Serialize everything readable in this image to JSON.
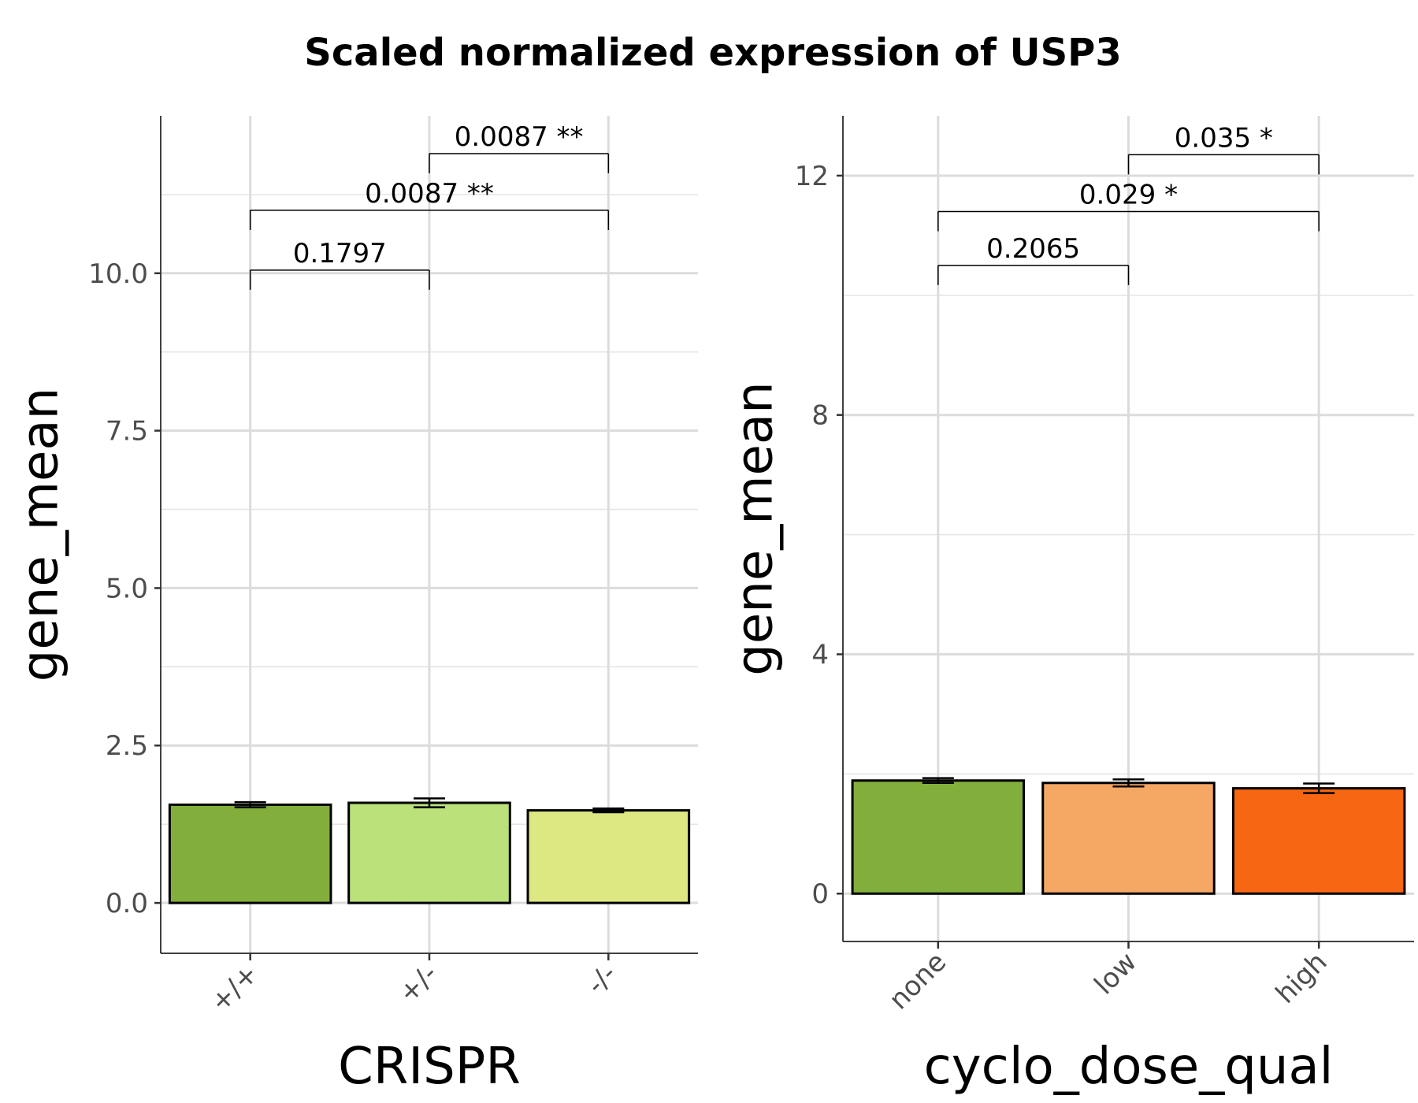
{
  "figure": {
    "title": "Scaled normalized expression of USP3"
  },
  "chart_data": [
    {
      "type": "bar",
      "xlabel": "CRISPR",
      "ylabel": "gene_mean",
      "categories": [
        "+/+",
        "+/-",
        "-/-"
      ],
      "values": [
        1.56,
        1.59,
        1.47
      ],
      "errors": [
        0.04,
        0.07,
        0.03
      ],
      "colors": [
        "#82ae3b",
        "#bae17a",
        "#dee882"
      ],
      "ylim": [
        -0.8,
        12.5
      ],
      "yticks": [
        0.0,
        2.5,
        5.0,
        7.5,
        10.0
      ],
      "ytick_labels": [
        "0.0",
        "2.5",
        "5.0",
        "7.5",
        "10.0"
      ],
      "grid": true,
      "comparisons": [
        {
          "from": 0,
          "to": 1,
          "label": "0.1797",
          "y": 10.05,
          "tail": 10.05
        },
        {
          "from": 0,
          "to": 2,
          "label": "0.0087 **",
          "y": 11.0,
          "tail": 11.0
        },
        {
          "from": 1,
          "to": 2,
          "label": "0.0087 **",
          "y": 11.9,
          "tail": 11.9
        }
      ]
    },
    {
      "type": "bar",
      "xlabel": "cyclo_dose_qual",
      "ylabel": "gene_mean",
      "categories": [
        "none",
        "low",
        "high"
      ],
      "values": [
        1.89,
        1.85,
        1.76
      ],
      "errors": [
        0.04,
        0.06,
        0.08
      ],
      "colors": [
        "#82ae3b",
        "#f5a764",
        "#f76612"
      ],
      "ylim": [
        -0.8,
        13.0
      ],
      "yticks": [
        0,
        4,
        8,
        12
      ],
      "ytick_labels": [
        "0",
        "4",
        "8",
        "12"
      ],
      "grid": true,
      "comparisons": [
        {
          "from": 0,
          "to": 1,
          "label": "0.2065",
          "y": 10.5,
          "tail": 10.5
        },
        {
          "from": 0,
          "to": 2,
          "label": "0.029 *",
          "y": 11.4,
          "tail": 11.4
        },
        {
          "from": 1,
          "to": 2,
          "label": "0.035 *",
          "y": 12.35,
          "tail": 12.35
        }
      ]
    }
  ]
}
